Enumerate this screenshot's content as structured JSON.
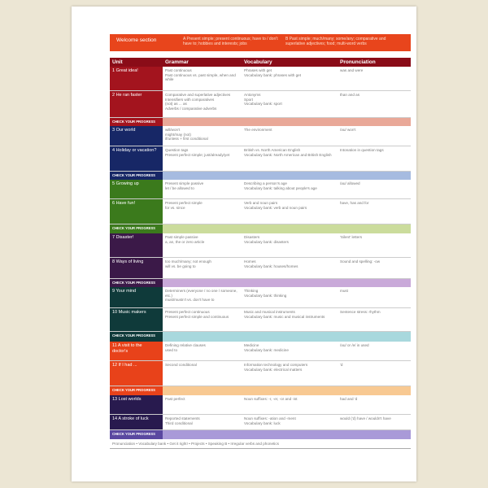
{
  "welcome": {
    "title": "Welcome section",
    "a": "A  Present simple; present continuous; have to / don't have to; hobbies and interests; jobs",
    "b": "B  Past simple; much/many; some/any; comparative and superlative adjectives; food; multi-word verbs"
  },
  "header": {
    "unit": "Unit",
    "grammar": "Grammar",
    "vocabulary": "Vocabulary",
    "pronunciation": "Pronunciation"
  },
  "check_label": "CHECK YOUR PROGRESS",
  "sections": [
    {
      "color": "#a3141e",
      "band": "#e9a898",
      "units": [
        {
          "unit": "1  Great idea!",
          "grammar": "Past continuous\nPast continuous vs. past simple, when and while",
          "vocabulary": "Phrases with get\nVocabulary bank: phrases with get",
          "pronunciation": "was and were"
        },
        {
          "unit": "2  He ran faster",
          "grammar": "Comparative and superlative adjectives\nIntensifiers with comparatives\n(not) as ... as\nAdverbs / comparative adverbs",
          "vocabulary": "Antonyms\nSport\nVocabulary bank: sport",
          "pronunciation": "than and as"
        }
      ]
    },
    {
      "color": "#172766",
      "band": "#a6bbe0",
      "units": [
        {
          "unit": "3  Our world",
          "grammar": "will/won't\nmight/may (not)\nif/unless + first conditional",
          "vocabulary": "The environment",
          "pronunciation": "/əʊ/ won't"
        },
        {
          "unit": "4  Holiday or vacation?",
          "grammar": "Question tags\nPresent perfect simple; just/already/yet",
          "vocabulary": "British vs. North American English\nVocabulary bank: North American and British English",
          "pronunciation": "Intonation in question tags"
        }
      ]
    },
    {
      "color": "#3b7a1c",
      "band": "#cbdc9c",
      "units": [
        {
          "unit": "5  Growing up",
          "grammar": "Present simple passive\nlet / be allowed to",
          "vocabulary": "Describing a person's age\nVocabulary bank: talking about people's age",
          "pronunciation": "/aʊ/ allowed"
        },
        {
          "unit": "6  Have fun!",
          "grammar": "Present perfect simple\nfor vs. since",
          "vocabulary": "Verb and noun pairs\nVocabulary bank: verb and noun pairs",
          "pronunciation": "have, has and for"
        }
      ]
    },
    {
      "color": "#3b1948",
      "band": "#c9a9d9",
      "units": [
        {
          "unit": "7  Disaster!",
          "grammar": "Past simple passive\na, an, the or zero article",
          "vocabulary": "Disasters\nVocabulary bank: disasters",
          "pronunciation": "'Silent' letters"
        },
        {
          "unit": "8  Ways of living",
          "grammar": "too much/many; not enough\nwill vs. be going to",
          "vocabulary": "Homes\nVocabulary bank: houses/homes",
          "pronunciation": "Sound and spelling: -ow"
        }
      ]
    },
    {
      "color": "#0f3a3a",
      "band": "#a8d8dd",
      "units": [
        {
          "unit": "9  Your mind",
          "grammar": "Determiners (everyone / no one / someone, etc.)\nmust/mustn't vs. don't have to",
          "vocabulary": "Thinking\nVocabulary bank: thinking",
          "pronunciation": "must"
        },
        {
          "unit": "10  Music makers",
          "grammar": "Present perfect continuous\nPresent perfect simple and continuous",
          "vocabulary": "Music and musical instruments\nVocabulary bank: music and musical instruments",
          "pronunciation": "Sentence stress: rhythm"
        }
      ]
    },
    {
      "color": "#e8421a",
      "band": "#f8c992",
      "units": [
        {
          "unit": "11  A visit to the\n      doctor's",
          "grammar": "Defining relative clauses\nused to",
          "vocabulary": "Medicine\nVocabulary bank: medicine",
          "pronunciation": "/əʊ/ or /e/ in used"
        },
        {
          "unit": "12  If I had ...",
          "grammar": "Second conditional",
          "vocabulary": "Information technology and computers\nVocabulary bank: electrical matters",
          "pronunciation": "'d"
        }
      ]
    },
    {
      "color": "#281a4e",
      "band": "#a99ad8",
      "bandLabel": "#5a48a0",
      "units": [
        {
          "unit": "13  Lost worlds",
          "grammar": "Past perfect",
          "vocabulary": "Noun suffixes: -r, -er, -or and -ist",
          "pronunciation": "had and 'd"
        },
        {
          "unit": "14  A stroke of luck",
          "grammar": "Reported statements\nThird conditional",
          "vocabulary": "Noun suffixes: -ation and -ment\nVocabulary bank: luck",
          "pronunciation": "would ('d) have / wouldn't have"
        }
      ]
    }
  ],
  "footer": "Pronunciation  •  Vocabulary bank  •  Get it right!  •  Projects  •  Speaking B  •  Irregular verbs and phonetics"
}
